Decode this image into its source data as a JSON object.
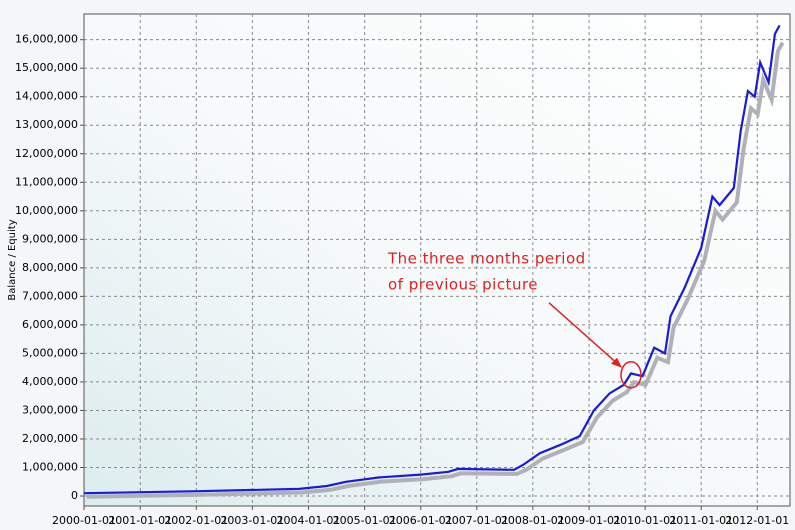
{
  "chart_data": {
    "type": "line",
    "ylabel": "Balance / Equity",
    "x": [
      "2000-01-01",
      "2002-01-15",
      "2003-11-01",
      "2004-05-01",
      "2004-09-01",
      "2005-04-01",
      "2006-01-01",
      "2006-07-01",
      "2006-09-01",
      "2007-09-01",
      "2007-11-01",
      "2008-02-15",
      "2008-07-01",
      "2008-11-01",
      "2009-02-01",
      "2009-05-15",
      "2009-08-15",
      "2009-10-01",
      "2009-12-15",
      "2010-03-01",
      "2010-05-10",
      "2010-06-15",
      "2010-09-15",
      "2011-01-01",
      "2011-03-15",
      "2011-05-01",
      "2011-08-01",
      "2011-09-15",
      "2011-11-01",
      "2011-12-15",
      "2012-01-20",
      "2012-03-15",
      "2012-04-25",
      "2012-05-25"
    ],
    "series": [
      {
        "color": "#b0b0b8",
        "values": [
          80000,
          150000,
          230000,
          320000,
          460000,
          610000,
          700000,
          800000,
          900000,
          880000,
          1030000,
          1420000,
          1720000,
          2000000,
          2850000,
          3450000,
          3750000,
          4100000,
          4000000,
          4950000,
          4800000,
          6000000,
          7000000,
          8350000,
          10100000,
          9800000,
          10400000,
          12300000,
          13700000,
          13500000,
          14700000,
          14000000,
          15700000,
          16000000
        ]
      },
      {
        "color": "#1a1adc",
        "values": [
          100000,
          170000,
          250000,
          350000,
          500000,
          650000,
          750000,
          850000,
          950000,
          920000,
          1100000,
          1500000,
          1800000,
          2100000,
          3000000,
          3600000,
          3900000,
          4300000,
          4200000,
          5200000,
          5000000,
          6300000,
          7300000,
          8700000,
          10500000,
          10200000,
          10800000,
          12800000,
          14200000,
          14000000,
          15200000,
          14500000,
          16200000,
          16500000
        ]
      }
    ],
    "xlim": [
      "2000-01-01",
      "2012-08-01"
    ],
    "xticks": [
      "2000-01-01",
      "2001-01-01",
      "2002-01-01",
      "2003-01-01",
      "2004-01-01",
      "2005-01-01",
      "2006-01-01",
      "2007-01-01",
      "2008-01-01",
      "2009-01-01",
      "2010-01-01",
      "2011-01-01",
      "2012-01-01"
    ],
    "ylim": [
      -350000,
      16900000
    ],
    "yticks": [
      0,
      {
        "value": 1000000,
        "label": "1,000,000"
      },
      {
        "value": 2000000,
        "label": "2,000,000"
      },
      {
        "value": 3000000,
        "label": "3,000,000"
      },
      {
        "value": 4000000,
        "label": "4,000,000"
      },
      {
        "value": 5000000,
        "label": "5,000,000"
      },
      {
        "value": 6000000,
        "label": "6,000,000"
      },
      {
        "value": 7000000,
        "label": "7,000,000"
      },
      {
        "value": 8000000,
        "label": "8,000,000"
      },
      {
        "value": 9000000,
        "label": "9,000,000"
      },
      {
        "value": 10000000,
        "label": "10,000,000"
      },
      {
        "value": 11000000,
        "label": "11,000,000"
      },
      {
        "value": 12000000,
        "label": "12,000,000"
      },
      {
        "value": 13000000,
        "label": "13,000,000"
      },
      {
        "value": 14000000,
        "label": "14,000,000"
      },
      {
        "value": 15000000,
        "label": "15,000,000"
      },
      {
        "value": 16000000,
        "label": "16,000,000"
      }
    ],
    "grid": true,
    "annotation": {
      "lines": [
        "The three months period",
        "of previous picture"
      ],
      "x": "2009-10-01",
      "y": 4250000,
      "color": "#e02020"
    }
  }
}
